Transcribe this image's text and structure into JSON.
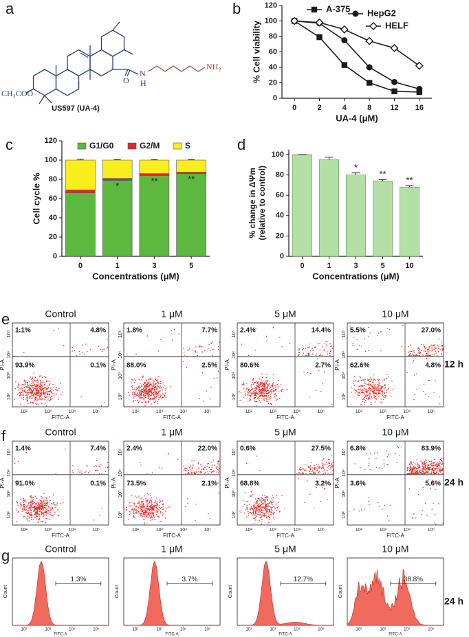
{
  "panel_labels": [
    "a",
    "b",
    "c",
    "d",
    "e",
    "f",
    "g"
  ],
  "structure": {
    "substituent": "CH₃COO",
    "carbonyl": "O",
    "amide_n": "N",
    "amide_h": "H",
    "amine": "NH₂",
    "compound": "US597 (UA-4)"
  },
  "chart_data": [
    {
      "type": "line",
      "y_label": "% Cell viability",
      "x_label": "UA-4 (μM)",
      "categories": [
        "0",
        "2",
        "4",
        "8",
        "12",
        "16"
      ],
      "series": [
        {
          "name": "A-375",
          "color": "#1a1a1a",
          "marker": "square",
          "filled": true,
          "values": [
            100,
            79,
            43,
            20,
            9,
            8
          ]
        },
        {
          "name": "HepG2",
          "color": "#1a1a1a",
          "marker": "circle",
          "filled": true,
          "values": [
            100,
            97,
            75,
            40,
            21,
            12
          ]
        },
        {
          "name": "HELF",
          "color": "#1a1a1a",
          "marker": "diamond",
          "filled": false,
          "values": [
            100,
            98,
            89,
            74,
            65,
            42
          ]
        }
      ],
      "ylim": [
        0,
        120
      ],
      "yticks": [
        0,
        20,
        40,
        60,
        80,
        100,
        120
      ]
    },
    {
      "type": "stacked_bar",
      "y_label": "Cell cycle %",
      "x_label": "Concentrations (μM)",
      "categories": [
        "0",
        "1",
        "3",
        "5"
      ],
      "series": [
        {
          "name": "G1/G0",
          "color": "#5cb83e",
          "values": [
            66,
            79,
            84,
            86
          ]
        },
        {
          "name": "G2/M",
          "color": "#e3262b",
          "values": [
            3,
            2,
            2,
            1.5
          ]
        },
        {
          "name": "S",
          "color": "#f8ee1e",
          "values": [
            31,
            19,
            14,
            12.5
          ],
          "errors": [
            1,
            0.5,
            0.5,
            0.5
          ]
        }
      ],
      "significance": [
        null,
        "*",
        "**",
        "**"
      ],
      "ylim": [
        0,
        120
      ],
      "yticks": [
        0,
        20,
        40,
        60,
        80,
        100,
        120
      ]
    },
    {
      "type": "bar",
      "y_label": [
        "% change in ΔΨm",
        "(relative to control)"
      ],
      "x_label": "Concentrations (μM)",
      "categories": [
        "0",
        "1",
        "3",
        "5",
        "10"
      ],
      "values": [
        100,
        95,
        80,
        74,
        68
      ],
      "errors": [
        0,
        2.5,
        2,
        1.5,
        1.5
      ],
      "significance": [
        null,
        null,
        "*",
        "**",
        "**"
      ],
      "color": "#b5e0a5",
      "ylim": [
        0,
        105
      ],
      "yticks": [
        0,
        20,
        40,
        60,
        80,
        100
      ]
    }
  ],
  "flow_cytometry": {
    "x_label": "FITC-A",
    "y_label": "PI-A",
    "tick_labels": [
      "10²",
      "10³",
      "10⁴",
      "10⁵"
    ],
    "conditions": [
      "Control",
      "1 μM",
      "5 μM",
      "10 μM"
    ],
    "rows": [
      {
        "time": "12 h",
        "quadrants": [
          {
            "ul": "1.1%",
            "ur": "4.8%",
            "ll": "93.9%",
            "lr": "0.1%"
          },
          {
            "ul": "1.8%",
            "ur": "7.7%",
            "ll": "88.0%",
            "lr": "2.5%"
          },
          {
            "ul": "2.4%",
            "ur": "14.4%",
            "ll": "80.6%",
            "lr": "2.7%"
          },
          {
            "ul": "5.5%",
            "ur": "27.0%",
            "ll": "62.6%",
            "lr": "4.8%"
          }
        ]
      },
      {
        "time": "24 h",
        "quadrants": [
          {
            "ul": "1.4%",
            "ur": "7.4%",
            "ll": "91.0%",
            "lr": "0.1%"
          },
          {
            "ul": "2.4%",
            "ur": "22.0%",
            "ll": "73.5%",
            "lr": "2.1%"
          },
          {
            "ul": "0.6%",
            "ur": "27.5%",
            "ll": "68.8%",
            "lr": "3.2%"
          },
          {
            "ul": "6.8%",
            "ur": "83.9%",
            "ll": "3.6%",
            "lr": "5.6%"
          }
        ]
      }
    ]
  },
  "histograms": {
    "y_label": "Count",
    "x_label": "FITC-A",
    "time": "24 h",
    "gates": [
      "1.3%",
      "3.7%",
      "12.7%",
      "38.8%"
    ]
  }
}
